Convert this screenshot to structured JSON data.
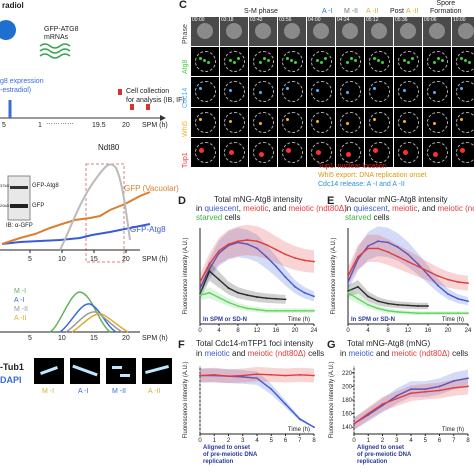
{
  "left_top": {
    "label_top": "radiol",
    "mrnas": "GFP-ATG8\nmRNAs",
    "expression_line1": "g8 expression",
    "expression_line2": "-estradiol)",
    "cell_collection_line1": "Cell collection",
    "cell_collection_line2": "for analysis (IB, IF)",
    "timeline_ticks": [
      "5",
      "1",
      "19.5",
      "20"
    ],
    "timeline_dots": "…………",
    "spm_label": "SPM (h)"
  },
  "left_mid": {
    "ndt80": "Ndt80",
    "gfp_vacuolar": "GFP (Vacuolar)",
    "gfp_atg8": "GFP-Atg8",
    "blot_labels": [
      "GFP-Atg8",
      "GFP"
    ],
    "blot_markers": [
      "37kD",
      "20kD"
    ],
    "ib_label": "IB: α-GFP",
    "x_ticks": [
      "5",
      "10",
      "15",
      "20"
    ],
    "spm_label": "SPM (h)"
  },
  "left_bottom": {
    "legend": [
      "M -I",
      "A -I",
      "M -II",
      "A -II"
    ],
    "x_ticks": [
      "5",
      "10",
      "15",
      "20"
    ],
    "spm_label": "SPM (h)",
    "tub_label": "-Tub1",
    "dapi_label": "DAPI",
    "micro_labels": [
      "M -I",
      "A -I",
      "M -II",
      "A -II"
    ]
  },
  "panel_c": {
    "letter": "C",
    "header_sm": "S-M phase",
    "header_ai": "A -I",
    "header_mii": "M -II",
    "header_aii": "A -II",
    "header_post": "Post",
    "header_post2": "A -II",
    "header_spore": "Spore\nFormation",
    "times": [
      "00:00",
      "03:18",
      "03:42",
      "03:56",
      "04:00",
      "04:24",
      "05:12",
      "05:36",
      "09:06",
      "10:00"
    ],
    "rows": [
      "Phase",
      "Atg8",
      "Cdc14",
      "Whi5",
      "Tup1"
    ],
    "legend_tup1": "Tup1: nuclear location",
    "legend_whi5": "Whi5 export: DNA replication onset",
    "legend_cdc14": "Cdc14 release: A -I and A -II",
    "colors": {
      "phase": "#bbbbbb",
      "atg8": "#3fd13f",
      "cdc14": "#4fb3ff",
      "whi5": "#ffb020",
      "tup1": "#ff3030"
    }
  },
  "panel_d": {
    "letter": "D",
    "title_line1": "Total mNG-Atg8 intensity",
    "title_in": "in ",
    "title_quiescent": "quiescent",
    "title_meiotic": "meiotic",
    "title_and": ", and ",
    "title_mutant": "meiotic (ndt80Δ)",
    "title_line3": "starved",
    "title_cells": " cells",
    "ylabel": "Fluorescence intensity (A.U.)",
    "xlabel": "Time (h)",
    "note": "In SPM or SD-N",
    "x_ticks": [
      "0",
      "4",
      "8",
      "12",
      "16",
      "20",
      "24"
    ]
  },
  "panel_e": {
    "letter": "E",
    "title_line1": "Vacuolar mNG-Atg8 intensity",
    "title_line3": "starved",
    "title_cells": " cells",
    "ylabel": "Fluorescence intensity (A.U.)",
    "xlabel": "Time (h)",
    "note": "In SPM or SD-N",
    "x_ticks": [
      "0",
      "4",
      "8",
      "12",
      "16",
      "20",
      "24"
    ]
  },
  "panel_f": {
    "letter": "F",
    "title_line1": "Total Cdc14-mTFP1 foci intensity",
    "title_in": "in ",
    "title_meiotic": "meiotic",
    "title_and": " and ",
    "title_mutant": "meiotic (ndt80Δ)",
    "title_cells": " cells",
    "ylabel": "Fluorescence intensity (A.U.)",
    "xlabel": "Time (h)",
    "note_line1": "Aligned to onset",
    "note_line2": "of pre-meiotic DNA",
    "note_line3": "replication",
    "x_ticks": [
      "0",
      "1",
      "2",
      "3",
      "4",
      "5",
      "6",
      "7",
      "8"
    ]
  },
  "panel_g": {
    "letter": "G",
    "title_line1": "Total mNG-Atg8 (mNG)",
    "title_in": "in ",
    "title_meiotic": "meiotic",
    "title_and": " and ",
    "title_mutant": "meiotic (ndt80Δ)",
    "title_cells": " cells",
    "ylabel": "Fluorescence intensity (A.U.)",
    "xlabel": "Time (h)",
    "y_ticks": [
      "140",
      "160",
      "180",
      "200",
      "220"
    ],
    "note_line1": "Aligned to onset",
    "note_line2": "of pre-meiotic DNA",
    "note_line3": "replication",
    "x_ticks": [
      "0",
      "1",
      "2",
      "3",
      "4",
      "5",
      "6",
      "7",
      "8"
    ]
  },
  "chart_data": [
    {
      "type": "line",
      "panel": "D",
      "x": [
        0,
        2,
        4,
        6,
        8,
        10,
        12,
        14,
        16,
        18,
        20,
        22,
        24
      ],
      "series": [
        {
          "name": "quiescent",
          "color": "#3a5bd9",
          "values": [
            60,
            92,
            118,
            131,
            136,
            133,
            126,
            112,
            96,
            78,
            62,
            52,
            46
          ]
        },
        {
          "name": "meiotic",
          "color": "#e23b3b",
          "values": [
            70,
            100,
            122,
            133,
            138,
            140,
            138,
            132,
            124,
            116,
            110,
            106,
            104
          ]
        },
        {
          "name": "meiotic (ndt80Δ)",
          "color": "#2a2a2a",
          "values": [
            50,
            88,
            74,
            60,
            52,
            48,
            45,
            43,
            42,
            41,
            null,
            null,
            null
          ]
        },
        {
          "name": "starved",
          "color": "#5fd35f",
          "values": [
            48,
            52,
            44,
            36,
            30,
            26,
            24,
            22,
            22,
            22,
            22,
            22,
            22
          ]
        }
      ],
      "xlim": [
        0,
        24
      ]
    },
    {
      "type": "line",
      "panel": "E",
      "x": [
        0,
        2,
        4,
        6,
        8,
        10,
        12,
        14,
        16,
        18,
        20,
        22,
        24
      ],
      "series": [
        {
          "name": "quiescent",
          "color": "#3a5bd9",
          "values": [
            70,
            108,
            130,
            138,
            136,
            128,
            116,
            100,
            82,
            64,
            50,
            42,
            38
          ]
        },
        {
          "name": "meiotic",
          "color": "#e23b3b",
          "values": [
            80,
            112,
            126,
            126,
            120,
            112,
            104,
            96,
            88,
            80,
            74,
            70,
            68
          ]
        },
        {
          "name": "meiotic (ndt80Δ)",
          "color": "#2a2a2a",
          "values": [
            55,
            62,
            46,
            38,
            34,
            32,
            31,
            30,
            30,
            null,
            null,
            null,
            null
          ]
        },
        {
          "name": "starved",
          "color": "#5fd35f",
          "values": [
            52,
            42,
            32,
            26,
            22,
            20,
            19,
            18,
            18,
            18,
            18,
            18,
            18
          ]
        }
      ],
      "xlim": [
        0,
        24
      ]
    },
    {
      "type": "line",
      "panel": "F",
      "x": [
        0,
        1,
        2,
        3,
        4,
        5,
        6,
        7,
        8
      ],
      "series": [
        {
          "name": "meiotic",
          "color": "#3a5bd9",
          "values": [
            86,
            86,
            85,
            84,
            82,
            66,
            44,
            22,
            10
          ]
        },
        {
          "name": "meiotic (ndt80Δ)",
          "color": "#e23b3b",
          "values": [
            86,
            87,
            85,
            86,
            88,
            87,
            86,
            87,
            86
          ]
        }
      ],
      "xlim": [
        0,
        8
      ]
    },
    {
      "type": "line",
      "panel": "G",
      "x": [
        0,
        1,
        2,
        3,
        4,
        5,
        6,
        7,
        8
      ],
      "series": [
        {
          "name": "meiotic",
          "color": "#3a5bd9",
          "values": [
            145,
            158,
            172,
            186,
            196,
            196,
            200,
            208,
            212
          ]
        },
        {
          "name": "meiotic (ndt80Δ)",
          "color": "#e23b3b",
          "values": [
            145,
            160,
            174,
            182,
            190,
            192,
            194,
            198,
            200
          ]
        }
      ],
      "xlim": [
        0,
        8
      ],
      "ylim": [
        130,
        230
      ]
    }
  ]
}
